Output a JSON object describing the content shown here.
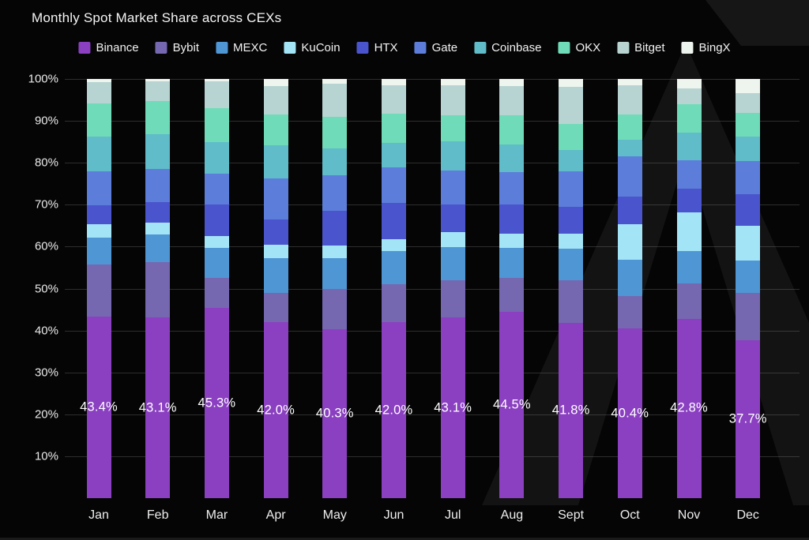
{
  "page": {
    "background": "#050505",
    "accent_grid": "rgba(255,255,255,0.16)"
  },
  "title": "Monthly Spot Market Share across CEXs",
  "chart_data": {
    "type": "bar",
    "stacked": true,
    "title": "Monthly Spot Market Share across CEXs",
    "xlabel": "",
    "ylabel": "",
    "ylim": [
      0,
      100
    ],
    "grid": "horizontal",
    "legend_position": "top",
    "categories": [
      "Jan",
      "Feb",
      "Mar",
      "Apr",
      "May",
      "Jun",
      "Jul",
      "Aug",
      "Sept",
      "Oct",
      "Nov",
      "Dec"
    ],
    "y_ticks": [
      "100%",
      "90%",
      "80%",
      "70%",
      "60%",
      "50%",
      "40%",
      "30%",
      "20%",
      "10%"
    ],
    "series": [
      {
        "name": "Binance",
        "color": "#8a40c0",
        "values": [
          43.4,
          43.1,
          45.3,
          42.0,
          40.3,
          42.0,
          43.1,
          44.5,
          41.8,
          40.4,
          42.8,
          37.7
        ]
      },
      {
        "name": "Bybit",
        "color": "#7568b0",
        "values": [
          12.3,
          13.2,
          7.2,
          7.0,
          9.7,
          9.0,
          8.8,
          8.0,
          10.2,
          7.9,
          8.4,
          11.3
        ]
      },
      {
        "name": "MEXC",
        "color": "#4f96d5",
        "values": [
          6.5,
          6.7,
          7.2,
          8.3,
          7.3,
          8.0,
          8.0,
          7.3,
          7.5,
          8.6,
          7.8,
          7.7
        ]
      },
      {
        "name": "KuCoin",
        "color": "#a3e4f6",
        "values": [
          3.1,
          2.8,
          2.9,
          3.1,
          3.0,
          2.7,
          3.5,
          3.3,
          3.6,
          8.4,
          9.1,
          8.2
        ]
      },
      {
        "name": "HTX",
        "color": "#4a54cc",
        "values": [
          4.5,
          4.8,
          7.4,
          6.0,
          8.2,
          8.7,
          6.6,
          6.9,
          6.4,
          6.6,
          5.8,
          7.6
        ]
      },
      {
        "name": "Gate",
        "color": "#5c7eda",
        "values": [
          8.1,
          8.0,
          7.5,
          9.9,
          8.6,
          8.5,
          8.2,
          7.7,
          8.4,
          9.6,
          6.8,
          8.0
        ]
      },
      {
        "name": "Coinbase",
        "color": "#5fbcc8",
        "values": [
          8.4,
          8.2,
          7.4,
          7.9,
          6.3,
          5.8,
          6.9,
          6.6,
          5.1,
          4.0,
          6.5,
          5.7
        ]
      },
      {
        "name": "OKX",
        "color": "#70dbb8",
        "values": [
          7.8,
          7.9,
          8.2,
          7.4,
          7.6,
          7.1,
          6.3,
          7.0,
          6.3,
          6.1,
          6.7,
          5.8
        ]
      },
      {
        "name": "Bitget",
        "color": "#b7d4d2",
        "values": [
          5.2,
          4.8,
          6.4,
          6.7,
          7.8,
          6.8,
          7.2,
          7.0,
          8.8,
          7.0,
          3.8,
          4.6
        ]
      },
      {
        "name": "BingX",
        "color": "#eef5ee",
        "values": [
          0.7,
          0.5,
          0.5,
          1.7,
          1.2,
          1.4,
          1.4,
          1.7,
          1.9,
          1.4,
          2.3,
          3.4
        ]
      }
    ],
    "bar_labels": {
      "series": "Binance",
      "values": [
        "43.4%",
        "43.1%",
        "45.3%",
        "42.0%",
        "40.3%",
        "42.0%",
        "43.1%",
        "44.5%",
        "41.8%",
        "40.4%",
        "42.8%",
        "37.7%"
      ]
    }
  }
}
